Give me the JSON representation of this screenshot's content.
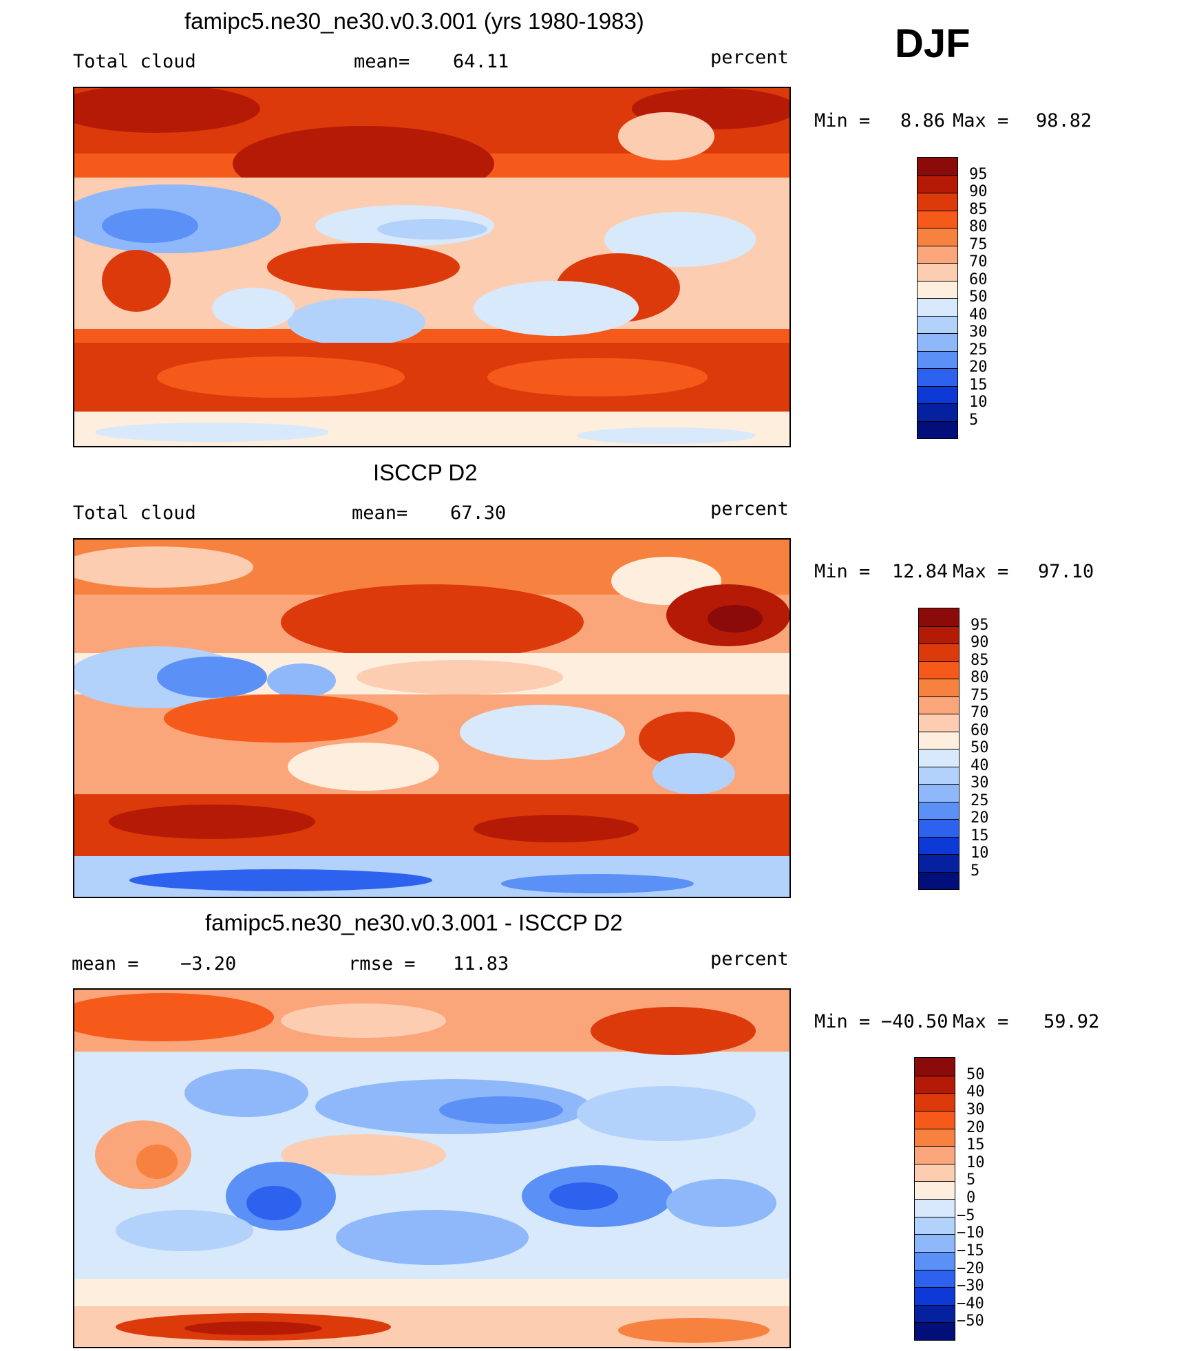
{
  "season": "DJF",
  "units": "percent",
  "chart_data": [
    {
      "type": "heatmap",
      "title": "famipc5.ne30_ne30.v0.3.001 (yrs 1980-1983)",
      "left_label": "Total cloud",
      "stat_label": "mean=",
      "stat_value": "64.11",
      "units": "percent",
      "min_label": "Min =",
      "min_value": "8.86",
      "max_label": "Max =",
      "max_value": "98.82",
      "colorbar_levels": [
        "95",
        "90",
        "85",
        "80",
        "75",
        "70",
        "60",
        "50",
        "40",
        "30",
        "25",
        "20",
        "15",
        "10",
        "5"
      ],
      "colorbar_colors": [
        "#8b0a0a",
        "#b51a06",
        "#dc3a0b",
        "#f55a1a",
        "#f7823f",
        "#fba57a",
        "#fccdb0",
        "#fdeedd",
        "#d8e9fb",
        "#b2d2fb",
        "#8fb8fb",
        "#5b91f6",
        "#2d62ef",
        "#0d3ad6",
        "#05219f",
        "#020f7a"
      ]
    },
    {
      "type": "heatmap",
      "title": "ISCCP D2",
      "left_label": "Total cloud",
      "stat_label": "mean=",
      "stat_value": "67.30",
      "units": "percent",
      "min_label": "Min =",
      "min_value": "12.84",
      "max_label": "Max =",
      "max_value": "97.10",
      "colorbar_levels": [
        "95",
        "90",
        "85",
        "80",
        "75",
        "70",
        "60",
        "50",
        "40",
        "30",
        "25",
        "20",
        "15",
        "10",
        "5"
      ],
      "colorbar_colors": [
        "#8b0a0a",
        "#b51a06",
        "#dc3a0b",
        "#f55a1a",
        "#f7823f",
        "#fba57a",
        "#fccdb0",
        "#fdeedd",
        "#d8e9fb",
        "#b2d2fb",
        "#8fb8fb",
        "#5b91f6",
        "#2d62ef",
        "#0d3ad6",
        "#05219f",
        "#020f7a"
      ]
    },
    {
      "type": "heatmap",
      "title": "famipc5.ne30_ne30.v0.3.001 - ISCCP D2",
      "left_label": "mean =",
      "left_value": "−3.20",
      "stat_label": "rmse =",
      "stat_value": "11.83",
      "units": "percent",
      "min_label": "Min =",
      "min_value": "−40.50",
      "max_label": "Max =",
      "max_value": "59.92",
      "colorbar_levels": [
        "50",
        "40",
        "30",
        "20",
        "15",
        "10",
        "5",
        "0",
        "−5",
        "−10",
        "−15",
        "−20",
        "−30",
        "−40",
        "−50"
      ],
      "colorbar_colors": [
        "#8b0a0a",
        "#b51a06",
        "#dc3a0b",
        "#f55a1a",
        "#f7823f",
        "#fba57a",
        "#fccdb0",
        "#fdeedd",
        "#d8e9fb",
        "#b2d2fb",
        "#8fb8fb",
        "#5b91f6",
        "#2d62ef",
        "#0d3ad6",
        "#05219f",
        "#020f7a"
      ]
    }
  ]
}
